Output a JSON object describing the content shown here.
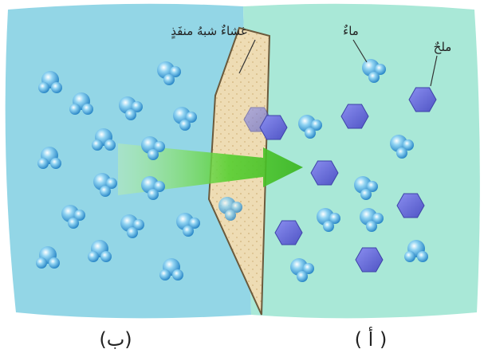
{
  "labels": {
    "membrane": "غشاءٌ شبهُ منفَذٍ",
    "water": "ماءٌ",
    "salt": "ملحٌ",
    "side_b": "(ب)",
    "side_a": "( أ )"
  },
  "colors": {
    "left_solution": "#93d6e6",
    "right_solution": "#a9e8d7",
    "membrane_fill": "#eedcb4",
    "water_molecule": "#3aa4dc",
    "salt_particle": "#6a6fd6",
    "flow_arrow": "#3fbf28"
  },
  "icons": {
    "water": "water-molecule-icon",
    "salt": "salt-hexagon-icon",
    "arrow": "flow-arrow-icon"
  }
}
